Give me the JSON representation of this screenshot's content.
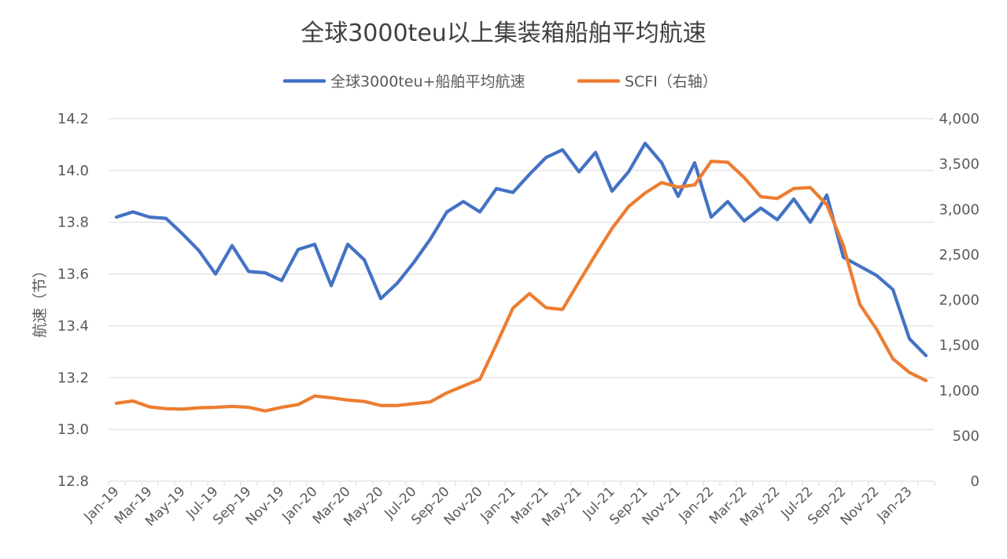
{
  "chart_data": {
    "type": "line",
    "title": "全球3000teu以上集装箱船舶平均航速",
    "ylabel": "航速（节）",
    "ylim": [
      12.8,
      14.2
    ],
    "y_ticks": [
      "12.8",
      "13.0",
      "13.2",
      "13.4",
      "13.6",
      "13.8",
      "14.0",
      "14.2"
    ],
    "y2lim": [
      0,
      4000
    ],
    "y2_ticks": [
      "0",
      "500",
      "1,000",
      "1,500",
      "2,000",
      "2,500",
      "3,000",
      "3,500",
      "4,000"
    ],
    "x_tick_labels": [
      "Jan-19",
      "Mar-19",
      "May-19",
      "Jul-19",
      "Sep-19",
      "Nov-19",
      "Jan-20",
      "Mar-20",
      "May-20",
      "Jul-20",
      "Sep-20",
      "Nov-20",
      "Jan-21",
      "Mar-21",
      "May-21",
      "Jul-21",
      "Sep-21",
      "Nov-21",
      "Jan-22",
      "Mar-22",
      "May-22",
      "Jul-22",
      "Sep-22",
      "Nov-22",
      "Jan-23"
    ],
    "grid": true,
    "legend_position": "top",
    "series": [
      {
        "name": "全球3000teu+船舶平均航速",
        "axis": "left",
        "color": "#4472C4",
        "values": [
          13.82,
          13.84,
          13.82,
          13.815,
          13.755,
          13.69,
          13.6,
          13.71,
          13.61,
          13.605,
          13.575,
          13.695,
          13.715,
          13.555,
          13.715,
          13.655,
          13.505,
          13.565,
          13.645,
          13.735,
          13.84,
          13.88,
          13.84,
          13.93,
          13.915,
          13.985,
          14.05,
          14.08,
          13.995,
          14.07,
          13.92,
          13.995,
          14.105,
          14.03,
          13.9,
          14.03,
          13.82,
          13.88,
          13.805,
          13.855,
          13.81,
          13.89,
          13.8,
          13.905,
          13.665,
          13.63,
          13.595,
          13.54,
          13.35,
          13.285
        ]
      },
      {
        "name": "SCFI（右轴）",
        "axis": "right",
        "color": "#ED7D31",
        "values": [
          860,
          885,
          820,
          800,
          795,
          810,
          815,
          825,
          815,
          775,
          815,
          845,
          940,
          920,
          895,
          880,
          835,
          835,
          855,
          875,
          975,
          1050,
          1125,
          1510,
          1910,
          2070,
          1915,
          1895,
          2200,
          2500,
          2790,
          3030,
          3180,
          3295,
          3245,
          3270,
          3530,
          3520,
          3350,
          3140,
          3120,
          3230,
          3240,
          3050,
          2600,
          1950,
          1680,
          1350,
          1200,
          1110
        ]
      }
    ]
  }
}
